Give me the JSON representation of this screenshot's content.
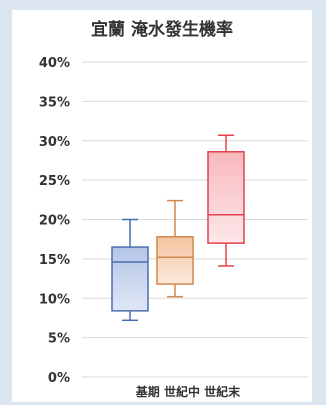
{
  "chart_data": {
    "type": "boxplot",
    "title": "宜蘭 淹水發生機率",
    "categories": [
      "基期",
      "世紀中",
      "世紀末"
    ],
    "xlabel": "",
    "ylabel": "",
    "ylim": [
      0,
      40
    ],
    "yticks": [
      0,
      5,
      10,
      15,
      20,
      25,
      30,
      35,
      40
    ],
    "ytick_labels": [
      "0%",
      "5%",
      "10%",
      "15%",
      "20%",
      "25%",
      "30%",
      "35%",
      "40%"
    ],
    "grid": true,
    "legend": "none",
    "boxes": [
      {
        "category": "基期",
        "min": 7.2,
        "q1": 8.4,
        "median": 14.6,
        "q3": 16.5,
        "max": 20.0
      },
      {
        "category": "世紀中",
        "min": 10.2,
        "q1": 11.8,
        "median": 15.2,
        "q3": 17.8,
        "max": 22.4
      },
      {
        "category": "世紀末",
        "min": 14.1,
        "q1": 17.0,
        "median": 20.6,
        "q3": 28.6,
        "max": 30.7
      }
    ],
    "colors": {
      "基期": {
        "stroke": "#4a6fb0",
        "fill_top": "#b4c5e6",
        "fill_bottom": "#dfe7f6"
      },
      "世紀中": {
        "stroke": "#d2874e",
        "fill_top": "#f3c49f",
        "fill_bottom": "#fce9db"
      },
      "世紀末": {
        "stroke": "#e0434c",
        "fill_top": "#f8b8bd",
        "fill_bottom": "#fde8ea"
      }
    }
  }
}
